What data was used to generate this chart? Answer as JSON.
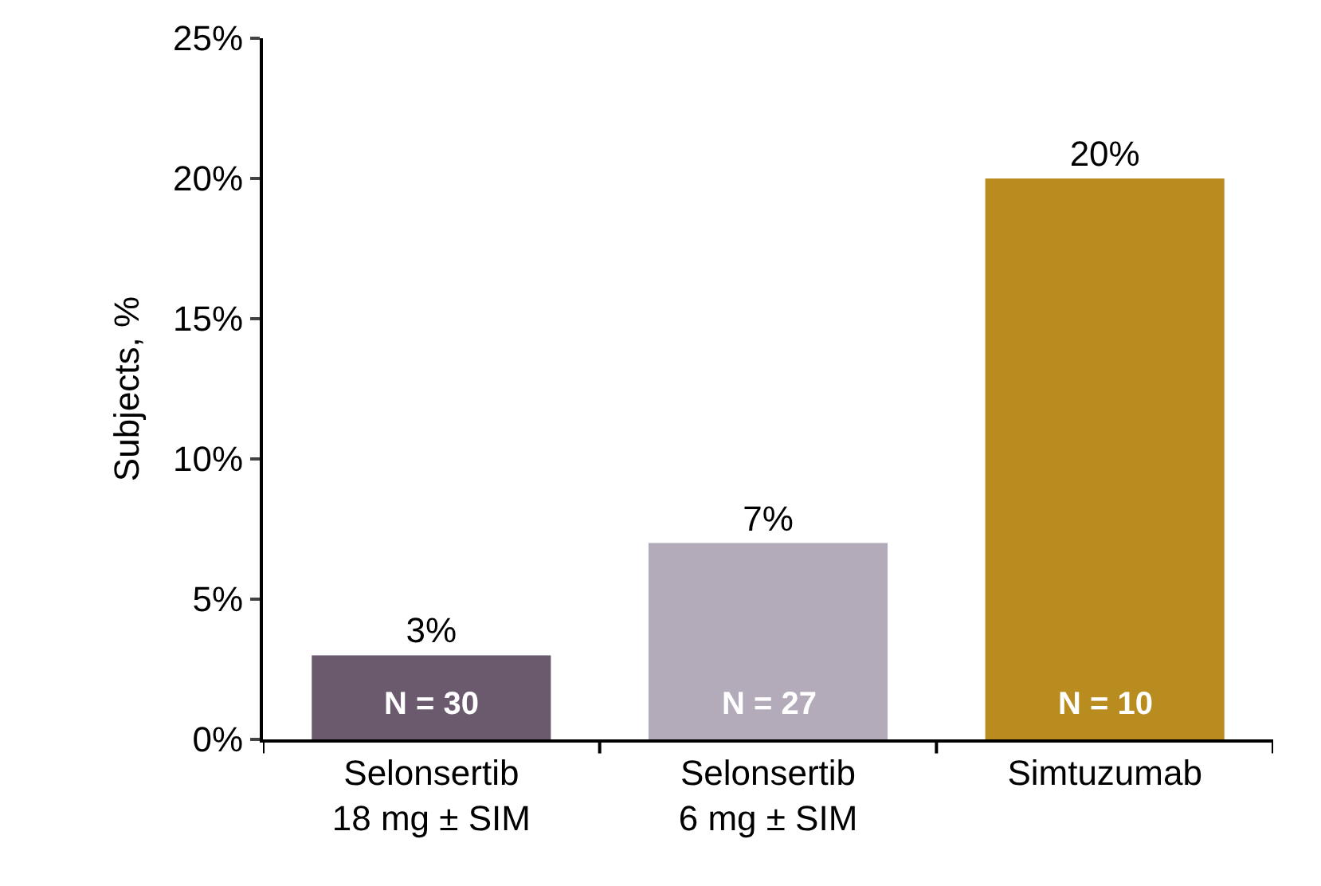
{
  "chart_data": {
    "type": "bar",
    "ylabel": "Subjects, %",
    "categories": [
      "Selonsertib\n18 mg ± SIM",
      "Selonsertib\n6 mg ± SIM",
      "Simtuzumab"
    ],
    "values": [
      3,
      7,
      20
    ],
    "colors": [
      "#6b5a6e",
      "#b4abba",
      "#b98c20"
    ],
    "value_labels": [
      "3%",
      "7%",
      "20%"
    ],
    "ylim": [
      0,
      25
    ],
    "yticks": [
      {
        "value": 0,
        "label": "0%"
      },
      {
        "value": 5,
        "label": "5%"
      },
      {
        "value": 10,
        "label": "10%"
      },
      {
        "value": 15,
        "label": "15%"
      },
      {
        "value": 20,
        "label": "20%"
      },
      {
        "value": 25,
        "label": "25%"
      }
    ],
    "annotations": [
      "N = 30",
      "N = 27",
      "N = 10"
    ]
  }
}
